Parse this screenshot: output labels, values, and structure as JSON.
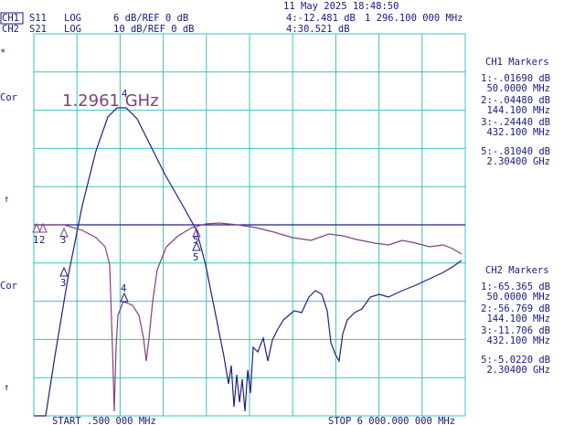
{
  "header": {
    "datetime": "11 May 2025  18:48:50",
    "ch1": {
      "label": "CH1",
      "param": "S11",
      "format": "LOG",
      "scale": "6 dB/REF 0 dB",
      "marker_value": "4:-12.481 dB",
      "marker_freq": "1 296.100 000 MHz"
    },
    "ch2": {
      "label": "CH2",
      "param": "S21",
      "format": "LOG",
      "scale": "10 dB/REF 0 dB",
      "marker_value": "4:30.521 dB"
    }
  },
  "left": {
    "star": "*",
    "cor1": "Cor",
    "arrow1": "↑",
    "cor2": "Cor",
    "arrow2": "↑"
  },
  "marker_readout": "1.2961 GHz",
  "trace_markers": {
    "ch1": [
      "1",
      "2",
      "3",
      "5"
    ],
    "ch2": [
      "3",
      "4",
      "5"
    ],
    "peak": "4"
  },
  "ch1_markers": {
    "title": "CH1 Markers",
    "items": [
      [
        "1:-.01690 dB",
        "50.0000 MHz"
      ],
      [
        "2:-.04480 dB",
        "144.100 MHz"
      ],
      [
        "3:-.24440 dB",
        "432.100 MHz"
      ],
      [
        "5:-.81040 dB",
        "2.30400 GHz"
      ]
    ]
  },
  "ch2_markers": {
    "title": "CH2 Markers",
    "items": [
      [
        "1:-65.365 dB",
        "50.0000 MHz"
      ],
      [
        "2:-56.769 dB",
        "144.100 MHz"
      ],
      [
        "3:-11.706 dB",
        "432.100 MHz"
      ],
      [
        "5:-5.0220 dB",
        "2.30400 GHz"
      ]
    ]
  },
  "footer": {
    "start": "START  .500 000 MHz",
    "stop": "STOP 6 000.000 000 MHz"
  }
}
